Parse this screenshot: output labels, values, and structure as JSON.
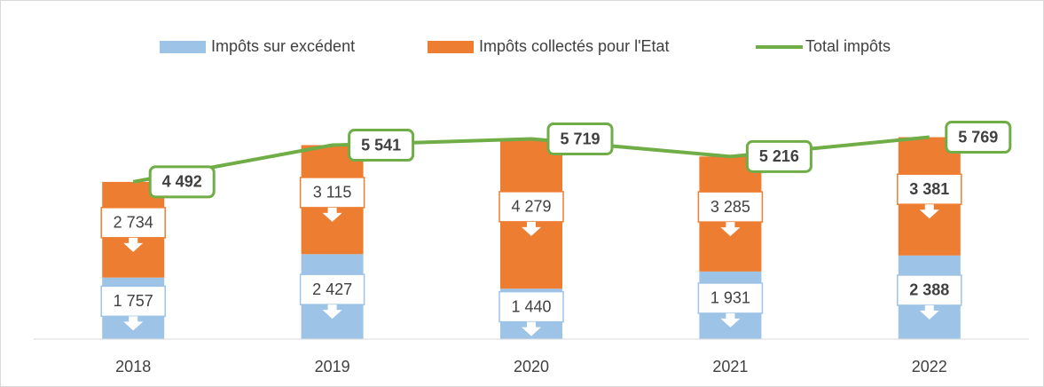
{
  "chart_data": {
    "type": "bar",
    "categories": [
      "2018",
      "2019",
      "2020",
      "2021",
      "2022"
    ],
    "series": [
      {
        "name": "Impôts sur excédent",
        "color": "#9dc3e6",
        "values": [
          1757,
          2427,
          1440,
          1931,
          2388
        ],
        "value_labels": [
          "1 757",
          "2 427",
          "1 440",
          "1 931",
          "2 388"
        ]
      },
      {
        "name": "Impôts collectés pour l'Etat",
        "color": "#ed7d31",
        "values": [
          2734,
          3115,
          4279,
          3285,
          3381
        ],
        "value_labels": [
          "2 734",
          "3 115",
          "4 279",
          "3 285",
          "3 381"
        ]
      },
      {
        "name": "Total impôts",
        "type": "line",
        "color": "#70ad47",
        "values": [
          4492,
          5541,
          5719,
          5216,
          5769
        ],
        "value_labels": [
          "4 492",
          "5 541",
          "5 719",
          "5 216",
          "5 769"
        ]
      }
    ],
    "ylim": [
      0,
      7000
    ]
  }
}
